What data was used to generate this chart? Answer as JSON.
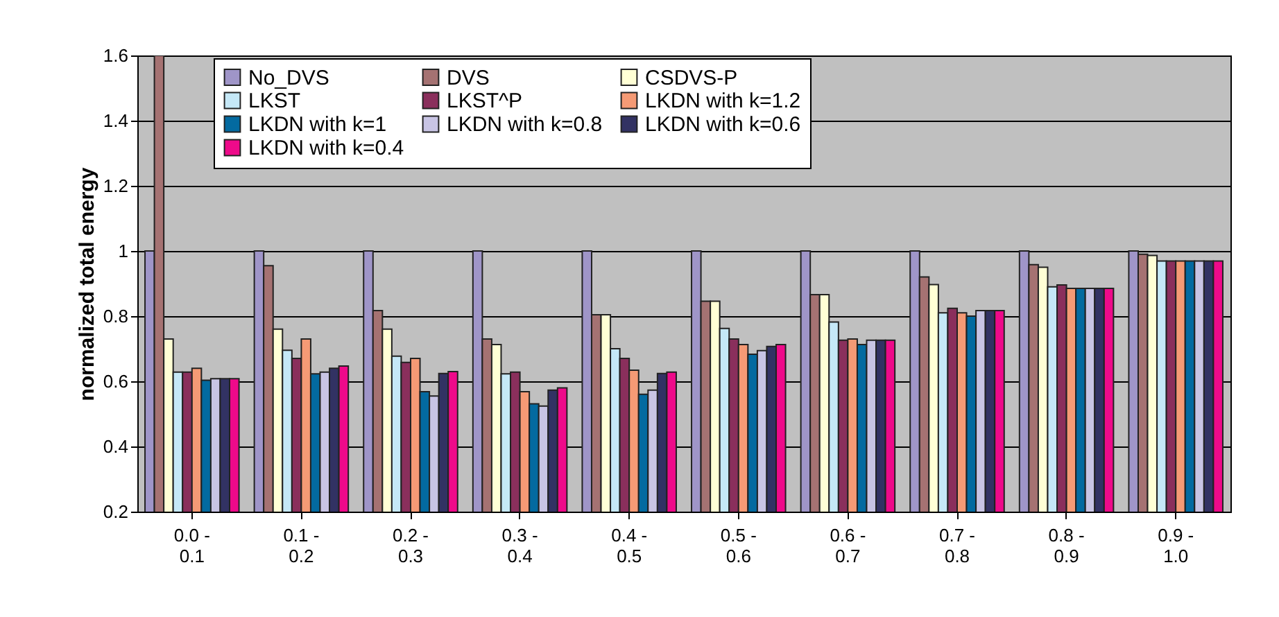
{
  "chart_data": {
    "type": "bar",
    "ylabel": "normalized total energy",
    "categories": [
      "0.0 - 0.1",
      "0.1 - 0.2",
      "0.2 - 0.3",
      "0.3 - 0.4",
      "0.4 - 0.5",
      "0.5 - 0.6",
      "0.6 - 0.7",
      "0.7 - 0.8",
      "0.8 - 0.9",
      "0.9 - 1.0"
    ],
    "series": [
      {
        "name": "No_DVS",
        "color": "#9f95c8",
        "values": [
          1.0,
          1.0,
          1.0,
          1.0,
          1.0,
          1.0,
          1.0,
          1.0,
          1.0,
          1.0
        ]
      },
      {
        "name": "DVS",
        "color": "#a57272",
        "values": [
          1.6,
          0.955,
          0.817,
          0.73,
          0.804,
          0.846,
          0.866,
          0.92,
          0.958,
          0.99
        ]
      },
      {
        "name": "CSDVS-P",
        "color": "#ffffd5",
        "values": [
          0.73,
          0.76,
          0.76,
          0.713,
          0.804,
          0.846,
          0.866,
          0.897,
          0.95,
          0.986
        ]
      },
      {
        "name": "LKST",
        "color": "#c5e8f7",
        "values": [
          0.628,
          0.695,
          0.677,
          0.623,
          0.7,
          0.762,
          0.782,
          0.81,
          0.89,
          0.969
        ]
      },
      {
        "name": "LKST^P",
        "color": "#8a2f5c",
        "values": [
          0.628,
          0.67,
          0.658,
          0.628,
          0.67,
          0.73,
          0.726,
          0.824,
          0.896,
          0.969
        ]
      },
      {
        "name": "LKDN with k=1.2",
        "color": "#f59a75",
        "values": [
          0.64,
          0.73,
          0.67,
          0.568,
          0.634,
          0.713,
          0.73,
          0.81,
          0.885,
          0.969
        ]
      },
      {
        "name": "LKDN with k=1",
        "color": "#036aa0",
        "values": [
          0.603,
          0.623,
          0.568,
          0.531,
          0.56,
          0.683,
          0.713,
          0.8,
          0.885,
          0.969
        ]
      },
      {
        "name": "LKDN with k=0.8",
        "color": "#c8c4e4",
        "values": [
          0.608,
          0.628,
          0.555,
          0.524,
          0.573,
          0.694,
          0.726,
          0.817,
          0.885,
          0.969
        ]
      },
      {
        "name": "LKDN with k=0.6",
        "color": "#323263",
        "values": [
          0.608,
          0.64,
          0.624,
          0.573,
          0.624,
          0.707,
          0.726,
          0.817,
          0.885,
          0.969
        ]
      },
      {
        "name": "LKDN with k=0.4",
        "color": "#ee0a8a",
        "values": [
          0.608,
          0.647,
          0.63,
          0.58,
          0.628,
          0.713,
          0.726,
          0.817,
          0.885,
          0.969
        ]
      }
    ],
    "ylim": [
      0.2,
      1.6
    ],
    "yticks": [
      0.2,
      0.4,
      0.6,
      0.8,
      1,
      1.2,
      1.4,
      1.6
    ],
    "grid": "y",
    "legend": "top"
  }
}
